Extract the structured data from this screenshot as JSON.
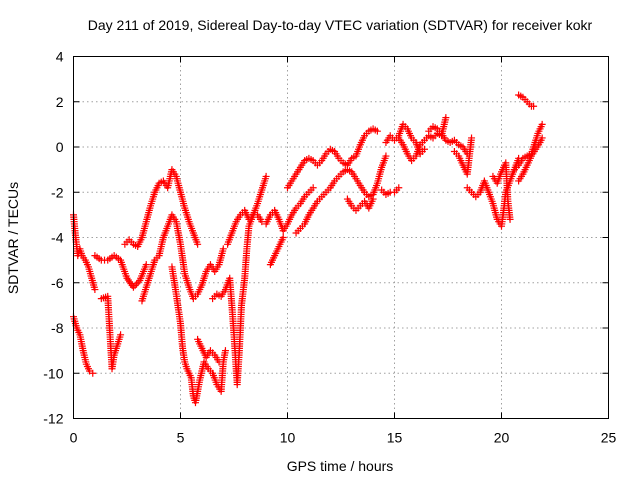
{
  "chart_data": {
    "type": "scatter",
    "title": "Day 211 of 2019, Sidereal Day-to-day VTEC variation (SDTVAR) for receiver kokr",
    "xlabel": "GPS time / hours",
    "ylabel": "SDTVAR / TECUs",
    "xlim": [
      0,
      25
    ],
    "ylim": [
      -12,
      4
    ],
    "xticks": [
      0,
      5,
      10,
      15,
      20,
      25
    ],
    "yticks": [
      -12,
      -10,
      -8,
      -6,
      -4,
      -2,
      0,
      2,
      4
    ],
    "grid": true,
    "marker": "plus",
    "color": "#ff0000",
    "tracks": [
      {
        "name": "track-1",
        "points": [
          [
            0.0,
            -3.0
          ],
          [
            0.1,
            -4.0
          ],
          [
            0.2,
            -4.8
          ],
          [
            0.3,
            -4.5
          ],
          [
            0.4,
            -4.8
          ],
          [
            0.55,
            -5.0
          ],
          [
            0.7,
            -5.3
          ],
          [
            0.85,
            -5.8
          ],
          [
            1.0,
            -6.3
          ]
        ]
      },
      {
        "name": "track-2",
        "points": [
          [
            0.0,
            -7.5
          ],
          [
            0.15,
            -8.0
          ],
          [
            0.3,
            -8.3
          ],
          [
            0.45,
            -9.0
          ],
          [
            0.6,
            -9.6
          ],
          [
            0.75,
            -9.9
          ],
          [
            0.9,
            -10.0
          ]
        ]
      },
      {
        "name": "track-3",
        "points": [
          [
            1.0,
            -4.8
          ],
          [
            1.3,
            -5.0
          ],
          [
            1.6,
            -5.0
          ],
          [
            1.9,
            -4.8
          ],
          [
            2.2,
            -5.0
          ],
          [
            2.5,
            -5.8
          ],
          [
            2.8,
            -6.2
          ],
          [
            3.1,
            -5.9
          ],
          [
            3.4,
            -5.2
          ]
        ]
      },
      {
        "name": "track-4",
        "points": [
          [
            1.3,
            -6.7
          ],
          [
            1.6,
            -6.6
          ],
          [
            1.8,
            -9.8
          ],
          [
            1.9,
            -9.2
          ],
          [
            2.1,
            -8.6
          ],
          [
            2.2,
            -8.3
          ]
        ]
      },
      {
        "name": "track-5",
        "points": [
          [
            2.4,
            -4.3
          ],
          [
            2.6,
            -4.1
          ],
          [
            2.8,
            -4.3
          ],
          [
            3.0,
            -4.4
          ],
          [
            3.2,
            -4.0
          ],
          [
            3.4,
            -3.3
          ],
          [
            3.6,
            -2.6
          ],
          [
            3.8,
            -2.0
          ],
          [
            4.0,
            -1.6
          ],
          [
            4.2,
            -1.5
          ],
          [
            4.4,
            -1.8
          ],
          [
            4.6,
            -1.0
          ],
          [
            4.8,
            -1.3
          ],
          [
            5.0,
            -2.0
          ],
          [
            5.2,
            -2.7
          ],
          [
            5.4,
            -3.3
          ],
          [
            5.6,
            -3.8
          ],
          [
            5.8,
            -4.3
          ]
        ]
      },
      {
        "name": "track-6",
        "points": [
          [
            3.2,
            -6.8
          ],
          [
            3.4,
            -6.2
          ],
          [
            3.6,
            -5.6
          ],
          [
            3.8,
            -5.0
          ],
          [
            4.0,
            -4.8
          ],
          [
            4.2,
            -4.0
          ],
          [
            4.4,
            -3.5
          ],
          [
            4.6,
            -3.0
          ],
          [
            4.8,
            -3.3
          ],
          [
            5.0,
            -4.3
          ],
          [
            5.2,
            -5.6
          ],
          [
            5.4,
            -6.2
          ],
          [
            5.6,
            -6.7
          ],
          [
            5.8,
            -6.5
          ],
          [
            6.0,
            -6.1
          ],
          [
            6.2,
            -5.5
          ],
          [
            6.4,
            -5.2
          ],
          [
            6.6,
            -5.5
          ],
          [
            6.8,
            -5.2
          ],
          [
            7.0,
            -4.5
          ]
        ]
      },
      {
        "name": "track-7",
        "points": [
          [
            4.6,
            -5.3
          ],
          [
            4.8,
            -6.5
          ],
          [
            5.0,
            -7.8
          ],
          [
            5.1,
            -8.9
          ],
          [
            5.2,
            -9.5
          ],
          [
            5.3,
            -9.8
          ],
          [
            5.5,
            -10.2
          ],
          [
            5.6,
            -11.0
          ],
          [
            5.7,
            -11.3
          ],
          [
            5.9,
            -10.3
          ],
          [
            6.1,
            -9.5
          ],
          [
            6.3,
            -9.8
          ],
          [
            6.5,
            -10.0
          ],
          [
            6.7,
            -10.5
          ],
          [
            6.9,
            -10.8
          ],
          [
            7.0,
            -9.5
          ],
          [
            7.1,
            -9.0
          ]
        ]
      },
      {
        "name": "track-8",
        "points": [
          [
            5.8,
            -8.5
          ],
          [
            6.0,
            -8.9
          ],
          [
            6.2,
            -9.3
          ],
          [
            6.4,
            -9.0
          ],
          [
            6.6,
            -9.2
          ],
          [
            6.8,
            -9.5
          ]
        ]
      },
      {
        "name": "track-9",
        "points": [
          [
            6.5,
            -6.7
          ],
          [
            6.7,
            -6.5
          ],
          [
            6.9,
            -6.6
          ],
          [
            7.1,
            -6.3
          ],
          [
            7.3,
            -5.8
          ],
          [
            7.4,
            -7.0
          ],
          [
            7.5,
            -8.3
          ],
          [
            7.6,
            -9.8
          ],
          [
            7.65,
            -10.5
          ],
          [
            7.75,
            -9.0
          ],
          [
            7.85,
            -7.0
          ],
          [
            8.0,
            -5.8
          ],
          [
            8.1,
            -4.5
          ],
          [
            8.2,
            -3.5
          ],
          [
            8.4,
            -3.0
          ],
          [
            8.6,
            -3.0
          ],
          [
            8.8,
            -3.3
          ]
        ]
      },
      {
        "name": "track-10",
        "points": [
          [
            7.2,
            -4.3
          ],
          [
            7.4,
            -3.8
          ],
          [
            7.6,
            -3.3
          ],
          [
            7.8,
            -3.0
          ],
          [
            8.0,
            -2.8
          ],
          [
            8.2,
            -3.2
          ],
          [
            8.4,
            -3.0
          ],
          [
            8.6,
            -2.5
          ],
          [
            8.8,
            -1.9
          ],
          [
            9.0,
            -1.3
          ]
        ]
      },
      {
        "name": "track-11",
        "points": [
          [
            9.0,
            -3.4
          ],
          [
            9.2,
            -3.0
          ],
          [
            9.4,
            -2.8
          ],
          [
            9.6,
            -3.2
          ],
          [
            9.8,
            -3.7
          ],
          [
            10.0,
            -3.4
          ],
          [
            10.2,
            -3.0
          ],
          [
            10.4,
            -2.7
          ],
          [
            10.6,
            -2.5
          ],
          [
            10.8,
            -2.2
          ],
          [
            11.0,
            -2.0
          ],
          [
            11.2,
            -1.8
          ]
        ]
      },
      {
        "name": "track-12",
        "points": [
          [
            9.2,
            -5.2
          ],
          [
            9.4,
            -4.8
          ],
          [
            9.6,
            -4.4
          ],
          [
            9.8,
            -4.0
          ]
        ]
      },
      {
        "name": "track-13",
        "points": [
          [
            10.0,
            -1.8
          ],
          [
            10.2,
            -1.5
          ],
          [
            10.4,
            -1.2
          ],
          [
            10.6,
            -0.9
          ],
          [
            10.8,
            -0.6
          ],
          [
            11.0,
            -0.5
          ],
          [
            11.2,
            -0.6
          ],
          [
            11.4,
            -0.8
          ],
          [
            11.6,
            -0.6
          ],
          [
            11.8,
            -0.3
          ],
          [
            12.0,
            -0.1
          ],
          [
            12.2,
            -0.2
          ],
          [
            12.4,
            -0.5
          ],
          [
            12.6,
            -0.7
          ],
          [
            12.8,
            -0.8
          ],
          [
            13.0,
            -0.5
          ],
          [
            13.2,
            -0.4
          ],
          [
            13.4,
            0.1
          ],
          [
            13.6,
            0.5
          ],
          [
            13.8,
            0.7
          ],
          [
            14.0,
            0.8
          ],
          [
            14.2,
            0.7
          ]
        ]
      },
      {
        "name": "track-14",
        "points": [
          [
            10.4,
            -3.8
          ],
          [
            10.6,
            -3.6
          ],
          [
            10.8,
            -3.4
          ],
          [
            11.0,
            -3.0
          ],
          [
            11.2,
            -2.7
          ],
          [
            11.4,
            -2.4
          ],
          [
            11.6,
            -2.2
          ],
          [
            11.8,
            -2.0
          ],
          [
            12.0,
            -1.8
          ],
          [
            12.2,
            -1.5
          ],
          [
            12.4,
            -1.3
          ],
          [
            12.6,
            -1.1
          ],
          [
            12.8,
            -1.0
          ],
          [
            13.0,
            -1.1
          ],
          [
            13.2,
            -1.4
          ],
          [
            13.4,
            -1.7
          ],
          [
            13.6,
            -2.0
          ],
          [
            13.8,
            -2.2
          ],
          [
            14.0,
            -2.1
          ],
          [
            14.2,
            -1.6
          ],
          [
            14.4,
            -0.9
          ],
          [
            14.6,
            -0.4
          ]
        ]
      },
      {
        "name": "track-15",
        "points": [
          [
            12.8,
            -2.3
          ],
          [
            13.0,
            -2.6
          ],
          [
            13.2,
            -2.8
          ],
          [
            13.4,
            -2.6
          ],
          [
            13.6,
            -2.4
          ],
          [
            13.8,
            -2.7
          ],
          [
            14.0,
            -2.3
          ]
        ]
      },
      {
        "name": "track-16",
        "points": [
          [
            14.4,
            -1.9
          ],
          [
            14.6,
            -2.1
          ],
          [
            14.8,
            -2.0
          ],
          [
            15.0,
            -2.0
          ],
          [
            15.2,
            -1.8
          ]
        ]
      },
      {
        "name": "track-17",
        "points": [
          [
            14.6,
            0.2
          ],
          [
            14.8,
            0.5
          ],
          [
            15.0,
            0.3
          ],
          [
            15.2,
            0.5
          ],
          [
            15.4,
            1.0
          ],
          [
            15.6,
            0.8
          ],
          [
            15.8,
            0.4
          ],
          [
            16.0,
            0.2
          ],
          [
            16.2,
            -0.3
          ],
          [
            16.4,
            -0.1
          ]
        ]
      },
      {
        "name": "track-18",
        "points": [
          [
            15.2,
            0.4
          ],
          [
            15.4,
            0.1
          ],
          [
            15.6,
            -0.3
          ],
          [
            15.8,
            -0.6
          ],
          [
            16.0,
            -0.4
          ],
          [
            16.2,
            0.1
          ],
          [
            16.4,
            0.3
          ],
          [
            16.6,
            0.5
          ],
          [
            16.8,
            0.4
          ],
          [
            17.0,
            0.6
          ],
          [
            17.2,
            0.5
          ],
          [
            17.4,
            1.3
          ]
        ]
      },
      {
        "name": "track-19",
        "points": [
          [
            16.6,
            0.7
          ],
          [
            16.8,
            0.9
          ],
          [
            17.0,
            0.8
          ],
          [
            17.2,
            0.6
          ],
          [
            17.4,
            0.3
          ],
          [
            17.6,
            0.2
          ],
          [
            17.8,
            0.3
          ],
          [
            18.0,
            0.1
          ],
          [
            18.2,
            0.0
          ],
          [
            18.4,
            -0.3
          ]
        ]
      },
      {
        "name": "track-20",
        "points": [
          [
            17.8,
            -0.2
          ],
          [
            18.0,
            -0.4
          ],
          [
            18.2,
            -0.8
          ],
          [
            18.4,
            -1.2
          ],
          [
            18.6,
            0.4
          ]
        ]
      },
      {
        "name": "track-21",
        "points": [
          [
            18.4,
            -1.8
          ],
          [
            18.6,
            -2.0
          ],
          [
            18.8,
            -2.2
          ],
          [
            19.0,
            -2.0
          ],
          [
            19.2,
            -1.5
          ],
          [
            19.4,
            -2.0
          ],
          [
            19.6,
            -2.5
          ],
          [
            19.8,
            -3.2
          ],
          [
            20.0,
            -3.5
          ],
          [
            20.1,
            -2.8
          ],
          [
            20.2,
            -2.0
          ],
          [
            20.4,
            -1.5
          ],
          [
            20.6,
            -1.0
          ],
          [
            20.8,
            -0.5
          ]
        ]
      },
      {
        "name": "track-22",
        "points": [
          [
            19.6,
            -1.3
          ],
          [
            19.8,
            -1.6
          ],
          [
            20.0,
            -1.1
          ],
          [
            20.2,
            -0.7
          ],
          [
            20.3,
            -2.4
          ],
          [
            20.4,
            -3.2
          ]
        ]
      },
      {
        "name": "track-23",
        "points": [
          [
            20.8,
            2.3
          ],
          [
            21.0,
            2.2
          ],
          [
            21.2,
            2.0
          ],
          [
            21.4,
            1.8
          ],
          [
            21.5,
            1.8
          ]
        ]
      },
      {
        "name": "track-24",
        "points": [
          [
            20.6,
            -1.0
          ],
          [
            20.8,
            -0.8
          ],
          [
            21.0,
            -0.5
          ],
          [
            21.2,
            -0.4
          ],
          [
            21.4,
            -0.3
          ],
          [
            21.5,
            0.0
          ],
          [
            21.6,
            0.3
          ],
          [
            21.7,
            0.6
          ],
          [
            21.8,
            0.8
          ],
          [
            21.9,
            1.0
          ]
        ]
      },
      {
        "name": "track-25",
        "points": [
          [
            20.8,
            -1.5
          ],
          [
            21.0,
            -1.2
          ],
          [
            21.2,
            -0.8
          ],
          [
            21.4,
            -0.4
          ],
          [
            21.6,
            -0.1
          ],
          [
            21.8,
            0.2
          ],
          [
            21.9,
            0.4
          ]
        ]
      }
    ]
  }
}
